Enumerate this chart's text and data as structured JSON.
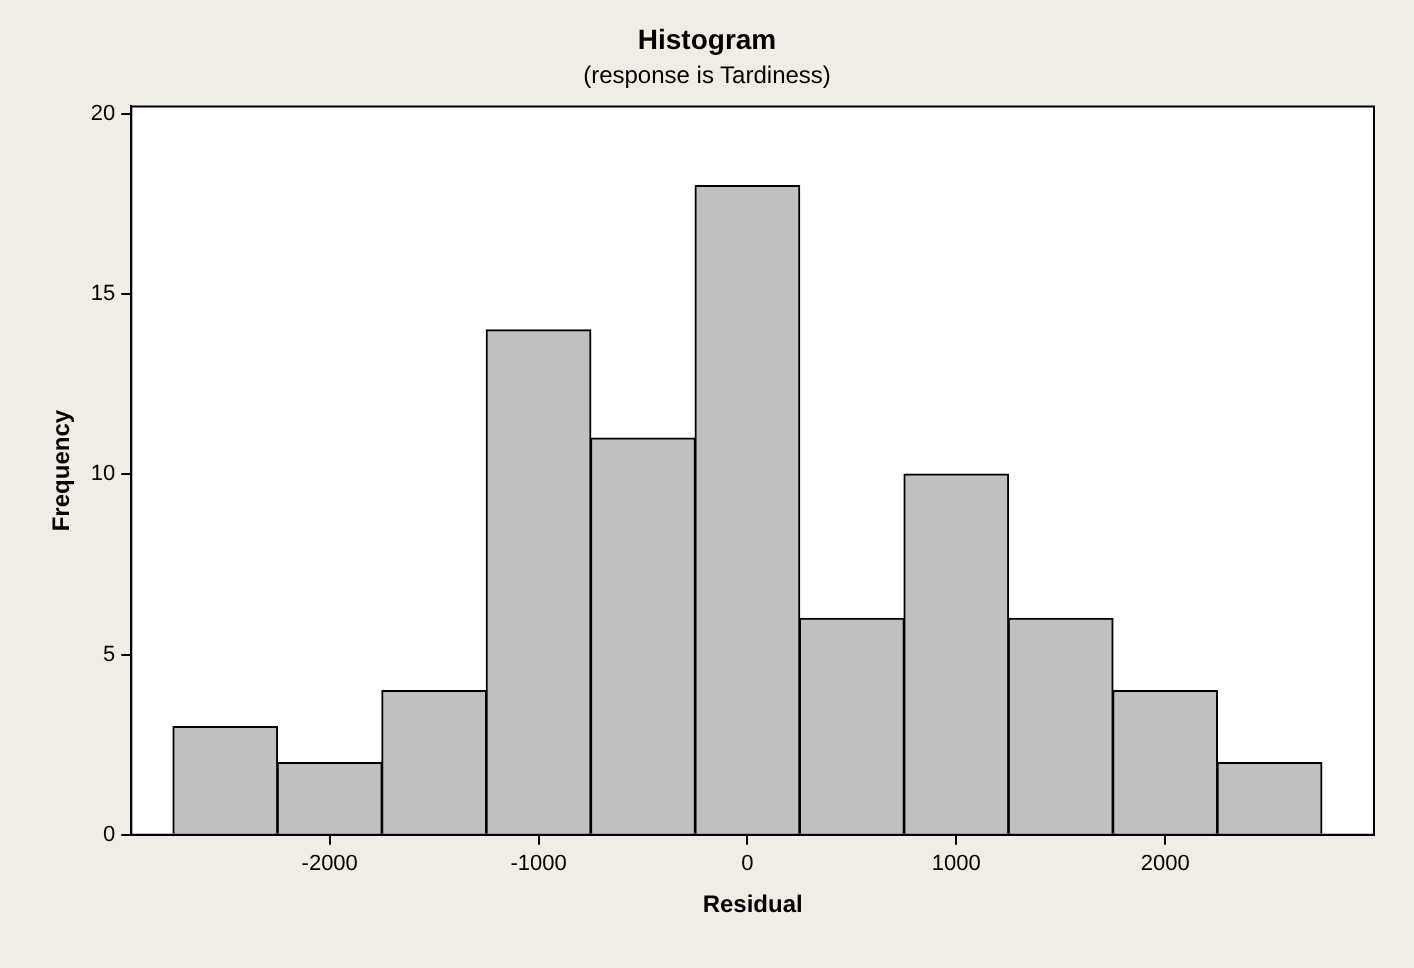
{
  "chart_data": {
    "type": "histogram",
    "title": "Histogram",
    "subtitle": "(response is Tardiness)",
    "xlabel": "Residual",
    "ylabel": "Frequency",
    "bins": [
      -2750,
      -2250,
      -1750,
      -1250,
      -750,
      -250,
      250,
      750,
      1250,
      1750,
      2250,
      2750
    ],
    "values": [
      3,
      2,
      4,
      14,
      11,
      18,
      6,
      10,
      6,
      4,
      2
    ],
    "color": "#c0c0c0",
    "xlim": [
      -2950,
      3000
    ],
    "xticks": [
      -2000,
      -1000,
      0,
      1000,
      2000
    ],
    "ylim": [
      0,
      20.2
    ],
    "yticks": [
      0,
      5,
      10,
      15,
      20
    ],
    "grid": false,
    "legend": false
  }
}
